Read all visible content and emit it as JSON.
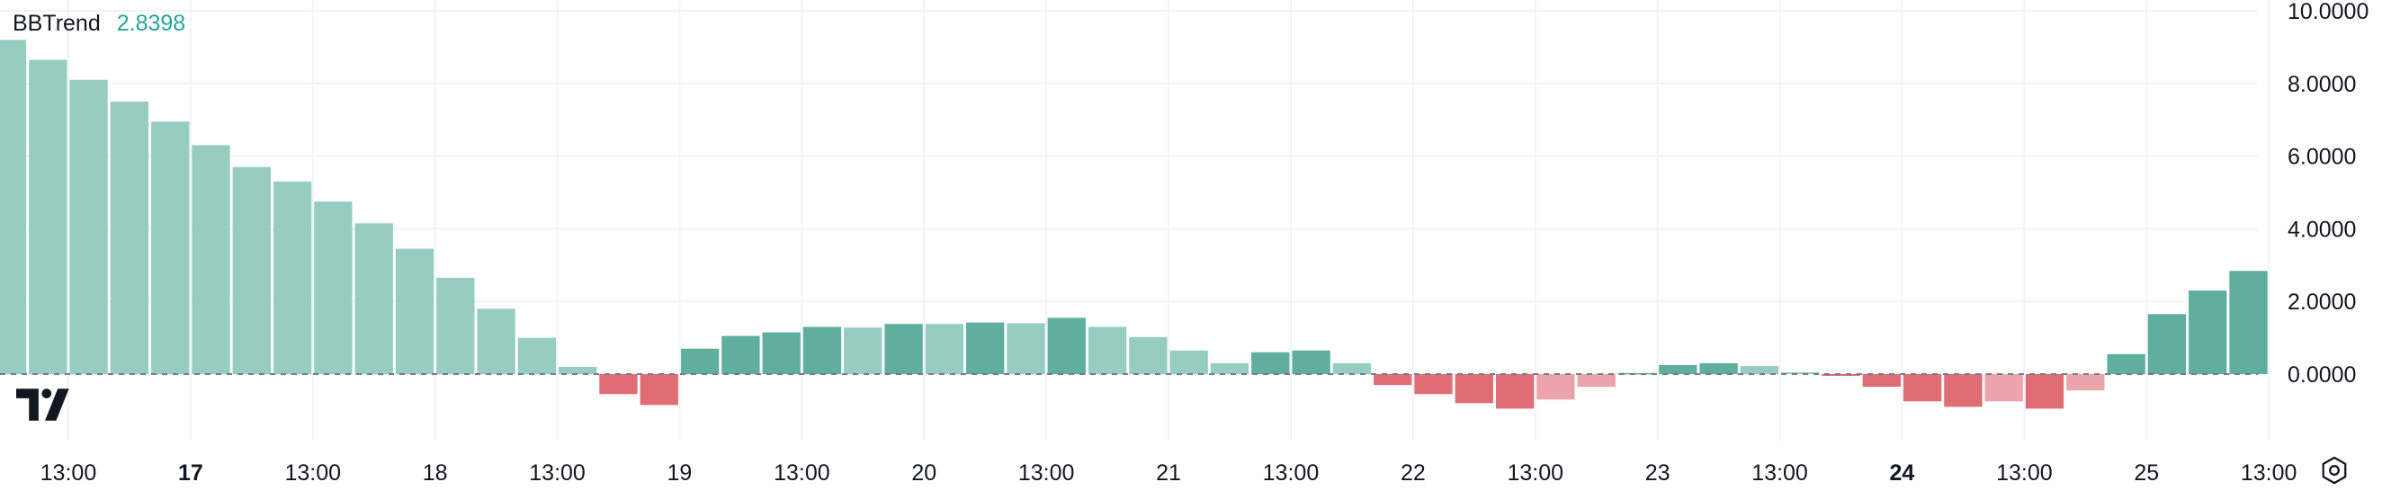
{
  "indicator": {
    "name": "BBTrend",
    "value": "2.8398"
  },
  "colors": {
    "pos_strong": "#5fae9e",
    "pos_light": "#97cdc0",
    "neg_strong": "#e06c75",
    "neg_light": "#eca4ac",
    "grid": "#f0f3fa",
    "zero_line": "#787b86",
    "axis_text": "#131722"
  },
  "icons": {
    "logo": "tradingview-logo-icon",
    "settings": "settings-gear-icon"
  },
  "chart_data": {
    "type": "bar",
    "title": "BBTrend",
    "y_ticks": [
      "10.0000",
      "8.0000",
      "6.0000",
      "4.0000",
      "2.0000",
      "0.0000"
    ],
    "ylim": [
      -1.5,
      10.0
    ],
    "x_ticks": [
      {
        "label": "13:00",
        "index": 1.5,
        "bold": false
      },
      {
        "label": "17",
        "index": 4.5,
        "bold": true
      },
      {
        "label": "13:00",
        "index": 7.5,
        "bold": false
      },
      {
        "label": "18",
        "index": 10.5,
        "bold": false
      },
      {
        "label": "13:00",
        "index": 13.5,
        "bold": false
      },
      {
        "label": "19",
        "index": 16.5,
        "bold": false
      },
      {
        "label": "13:00",
        "index": 19.5,
        "bold": false
      },
      {
        "label": "20",
        "index": 22.5,
        "bold": false
      },
      {
        "label": "13:00",
        "index": 25.5,
        "bold": false
      },
      {
        "label": "21",
        "index": 28.5,
        "bold": false
      },
      {
        "label": "13:00",
        "index": 31.5,
        "bold": false
      },
      {
        "label": "22",
        "index": 34.5,
        "bold": false
      },
      {
        "label": "13:00",
        "index": 37.5,
        "bold": false
      },
      {
        "label": "23",
        "index": 40.5,
        "bold": false
      },
      {
        "label": "13:00",
        "index": 43.5,
        "bold": false
      },
      {
        "label": "24",
        "index": 46.5,
        "bold": true
      },
      {
        "label": "13:00",
        "index": 49.5,
        "bold": false
      },
      {
        "label": "25",
        "index": 52.5,
        "bold": false
      },
      {
        "label": "13:00",
        "index": 55.5,
        "bold": false
      }
    ],
    "values": [
      9.2,
      8.65,
      8.1,
      7.5,
      6.95,
      6.3,
      5.7,
      5.3,
      4.75,
      4.15,
      3.45,
      2.65,
      1.8,
      1.0,
      0.2,
      -0.55,
      -0.85,
      0.7,
      1.05,
      1.15,
      1.3,
      1.28,
      1.38,
      1.38,
      1.42,
      1.4,
      1.55,
      1.3,
      1.02,
      0.65,
      0.3,
      0.6,
      0.65,
      0.3,
      -0.3,
      -0.55,
      -0.8,
      -0.95,
      -0.7,
      -0.35,
      0.03,
      0.25,
      0.3,
      0.22,
      0.05,
      -0.05,
      -0.35,
      -0.75,
      -0.9,
      -0.75,
      -0.95,
      -0.45,
      0.55,
      1.65,
      2.3,
      2.84
    ],
    "shades": [
      "light",
      "light",
      "light",
      "light",
      "light",
      "light",
      "light",
      "light",
      "light",
      "light",
      "light",
      "light",
      "light",
      "light",
      "light",
      "strong",
      "strong",
      "strong",
      "strong",
      "strong",
      "strong",
      "light",
      "strong",
      "light",
      "strong",
      "light",
      "strong",
      "light",
      "light",
      "light",
      "light",
      "strong",
      "strong",
      "light",
      "strong",
      "strong",
      "strong",
      "strong",
      "light",
      "light",
      "strong",
      "strong",
      "strong",
      "light",
      "light",
      "strong",
      "strong",
      "strong",
      "strong",
      "light",
      "strong",
      "light",
      "strong",
      "strong",
      "strong",
      "strong"
    ],
    "grid": true,
    "legend": "top-left"
  }
}
